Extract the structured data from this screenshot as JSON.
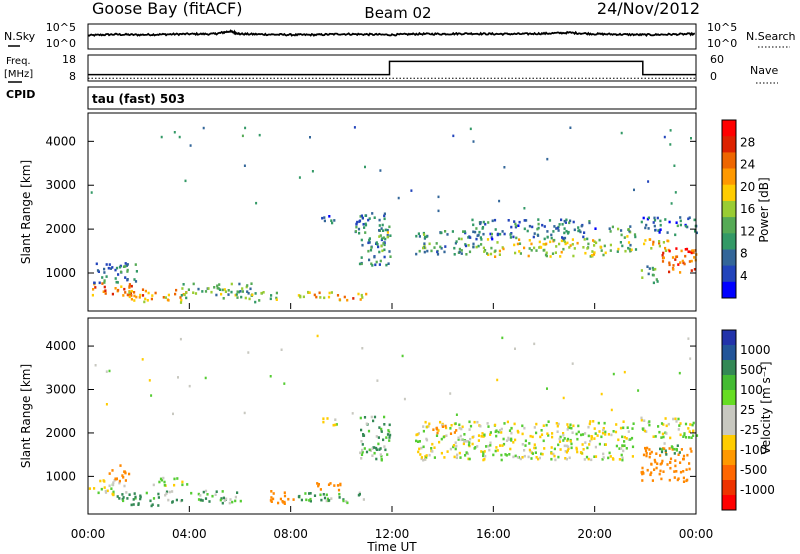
{
  "header": {
    "station": "Goose Bay (fitACF)",
    "beam": "Beam 02",
    "date": "24/Nov/2012"
  },
  "noise_panel": {
    "left_label": "N.Sky",
    "right_label": "N.Search",
    "left_ticks": [
      "10^5",
      "10^0"
    ],
    "right_ticks": [
      "10^5",
      "10^0"
    ]
  },
  "freq_panel": {
    "left_label_1": "Freq.",
    "left_label_2": "[MHz]",
    "cpid_label": "CPID",
    "right_label": "Nave",
    "left_ticks": [
      "18",
      "8"
    ],
    "right_ticks": [
      "60",
      "0"
    ]
  },
  "cpid": {
    "text": "tau (fast) 503"
  },
  "axes": {
    "xlabel": "Time UT",
    "ylabel": "Slant Range [km]",
    "x_ticks": [
      "00:00",
      "04:00",
      "08:00",
      "12:00",
      "16:00",
      "20:00",
      "00:00"
    ],
    "y_ticks": [
      "1000",
      "2000",
      "3000",
      "4000"
    ]
  },
  "power_colorbar": {
    "label": "Power [dB]",
    "ticks": [
      "28",
      "24",
      "20",
      "16",
      "12",
      "8",
      "4"
    ],
    "colors": [
      "#ff0000",
      "#dd2200",
      "#ee6600",
      "#ff9900",
      "#ffcc00",
      "#99cc33",
      "#55aa55",
      "#339966",
      "#336699",
      "#2244bb",
      "#0000ff"
    ]
  },
  "velocity_colorbar": {
    "label": "Velocity [m s⁻¹]",
    "ticks": [
      "1000",
      "500",
      "100",
      "25",
      "-25",
      "-100",
      "-500",
      "-1000"
    ],
    "colors": [
      "#2233aa",
      "#225599",
      "#338855",
      "#44bb33",
      "#66dd22",
      "#c8c8c0",
      "#c8c8c0",
      "#ffcc00",
      "#ff9900",
      "#ff6600",
      "#ee3300",
      "#ff0000"
    ]
  },
  "chart_data": [
    {
      "type": "line",
      "panel": "noise",
      "xlabel": "",
      "ylabel": "",
      "xlim": [
        0,
        24
      ],
      "series": [
        {
          "name": "N.Sky",
          "style": "solid",
          "x": [
            0,
            1,
            2,
            3,
            4,
            5,
            5.6,
            6,
            7,
            8,
            9,
            10,
            11,
            12,
            13,
            14,
            15,
            16,
            17,
            18,
            19,
            20,
            21,
            22,
            23,
            24
          ],
          "y": [
            0.55,
            0.6,
            0.58,
            0.6,
            0.62,
            0.62,
            0.75,
            0.62,
            0.6,
            0.58,
            0.58,
            0.62,
            0.6,
            0.58,
            0.62,
            0.62,
            0.64,
            0.62,
            0.62,
            0.64,
            0.68,
            0.62,
            0.6,
            0.58,
            0.6,
            0.62
          ]
        }
      ]
    },
    {
      "type": "line",
      "panel": "frequency",
      "xlim": [
        0,
        24
      ],
      "series": [
        {
          "name": "Freq.",
          "style": "solid",
          "x": [
            0,
            11.9,
            11.9,
            21.9,
            21.9,
            24
          ],
          "y": [
            10,
            10,
            16,
            16,
            10,
            10
          ]
        },
        {
          "name": "Nave",
          "style": "dotted",
          "x": [
            0,
            24
          ],
          "y": [
            2,
            2
          ]
        }
      ]
    },
    {
      "type": "heatmap",
      "panel": "power",
      "xlabel": "Time UT",
      "ylabel": "Slant Range [km]",
      "xlim": [
        0,
        24
      ],
      "ylim": [
        180,
        4600
      ],
      "zlim": [
        0,
        30
      ],
      "blobs": [
        {
          "t0": 0.0,
          "t1": 1.8,
          "r0": 500,
          "r1": 800,
          "p": 22
        },
        {
          "t0": 0.2,
          "t1": 2.0,
          "r0": 800,
          "r1": 1300,
          "p": 8
        },
        {
          "t0": 1.5,
          "t1": 4.0,
          "r0": 350,
          "r1": 650,
          "p": 20
        },
        {
          "t0": 3.5,
          "t1": 6.5,
          "r0": 450,
          "r1": 800,
          "p": 12
        },
        {
          "t0": 6.0,
          "t1": 7.5,
          "r0": 350,
          "r1": 600,
          "p": 14
        },
        {
          "t0": 8.2,
          "t1": 9.8,
          "r0": 400,
          "r1": 600,
          "p": 18
        },
        {
          "t0": 9.8,
          "t1": 11.0,
          "r0": 400,
          "r1": 600,
          "p": 20
        },
        {
          "t0": 9.2,
          "t1": 9.8,
          "r0": 2150,
          "r1": 2400,
          "p": 6
        },
        {
          "t0": 10.5,
          "t1": 11.9,
          "r0": 1200,
          "r1": 2400,
          "p": 8
        },
        {
          "t0": 11.3,
          "t1": 11.9,
          "r0": 1500,
          "r1": 2000,
          "p": 12
        },
        {
          "t0": 12.9,
          "t1": 15.5,
          "r0": 1450,
          "r1": 2000,
          "p": 10
        },
        {
          "t0": 15.5,
          "t1": 20.5,
          "r0": 1400,
          "r1": 1800,
          "p": 16
        },
        {
          "t0": 15.0,
          "t1": 20.0,
          "r0": 1800,
          "r1": 2250,
          "p": 7
        },
        {
          "t0": 20.5,
          "t1": 21.6,
          "r0": 1500,
          "r1": 2100,
          "p": 12
        },
        {
          "t0": 21.8,
          "t1": 24.0,
          "r0": 1900,
          "r1": 2300,
          "p": 6
        },
        {
          "t0": 21.8,
          "t1": 23.0,
          "r0": 1500,
          "r1": 1800,
          "p": 20
        },
        {
          "t0": 22.5,
          "t1": 24.0,
          "r0": 1000,
          "r1": 1600,
          "p": 24
        },
        {
          "t0": 21.8,
          "t1": 22.5,
          "r0": 800,
          "r1": 1200,
          "p": 10
        }
      ]
    },
    {
      "type": "heatmap",
      "panel": "velocity",
      "xlabel": "Time UT",
      "ylabel": "Slant Range [km]",
      "xlim": [
        0,
        24
      ],
      "ylim": [
        180,
        4600
      ],
      "zlim": [
        -1000,
        1000
      ],
      "blobs": [
        {
          "t0": 0.0,
          "t1": 1.5,
          "r0": 600,
          "r1": 950,
          "v": 0
        },
        {
          "t0": 1.0,
          "t1": 3.0,
          "r0": 350,
          "r1": 650,
          "v": 150
        },
        {
          "t0": 0.8,
          "t1": 1.6,
          "r0": 900,
          "r1": 1300,
          "v": -300
        },
        {
          "t0": 3.0,
          "t1": 6.0,
          "r0": 400,
          "r1": 700,
          "v": 80
        },
        {
          "t0": 2.5,
          "t1": 4.0,
          "r0": 800,
          "r1": 1000,
          "v": 0
        },
        {
          "t0": 7.0,
          "t1": 8.2,
          "r0": 400,
          "r1": 700,
          "v": -300
        },
        {
          "t0": 8.2,
          "t1": 11.0,
          "r0": 400,
          "r1": 650,
          "v": 80
        },
        {
          "t0": 9.0,
          "t1": 10.0,
          "r0": 700,
          "r1": 950,
          "v": -200
        },
        {
          "t0": 9.2,
          "t1": 9.8,
          "r0": 2150,
          "r1": 2400,
          "v": 0
        },
        {
          "t0": 10.6,
          "t1": 11.9,
          "r0": 1400,
          "r1": 2400,
          "v": 80
        },
        {
          "t0": 12.9,
          "t1": 21.5,
          "r0": 1400,
          "r1": 2300,
          "v": 0
        },
        {
          "t0": 13.5,
          "t1": 14.5,
          "r0": 2000,
          "r1": 2200,
          "v": -300
        },
        {
          "t0": 21.8,
          "t1": 24.0,
          "r0": 1900,
          "r1": 2400,
          "v": 0
        },
        {
          "t0": 21.8,
          "t1": 23.8,
          "r0": 900,
          "r1": 1700,
          "v": -300
        },
        {
          "t0": 22.5,
          "t1": 23.5,
          "r0": 1500,
          "r1": 1800,
          "v": 100
        }
      ]
    }
  ]
}
